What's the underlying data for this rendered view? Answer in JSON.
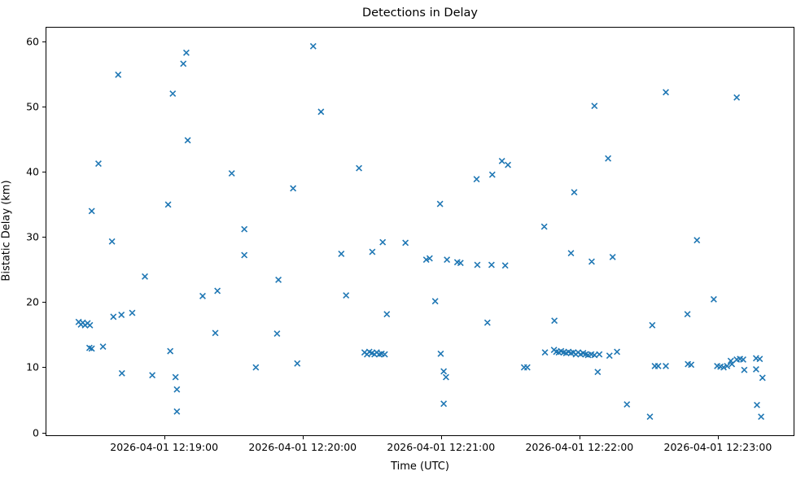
{
  "chart_data": {
    "type": "scatter",
    "title": "Detections in Delay",
    "xlabel": "Time (UTC)",
    "ylabel": "Bistatic Delay (km)",
    "legend": "none",
    "grid": false,
    "marker": "x",
    "marker_color": "#1f77b4",
    "x_unit": "seconds since 2026-04-01 12:18:00 UTC",
    "x_axis_range_s": [
      8.6,
      333.2
    ],
    "y_axis_range": [
      -0.56,
      62.26
    ],
    "x_ticks": [
      {
        "s": 60,
        "label": "2026-04-01 12:19:00"
      },
      {
        "s": 120,
        "label": "2026-04-01 12:20:00"
      },
      {
        "s": 180,
        "label": "2026-04-01 12:21:00"
      },
      {
        "s": 240,
        "label": "2026-04-01 12:22:00"
      },
      {
        "s": 300,
        "label": "2026-04-01 12:23:00"
      }
    ],
    "y_ticks": [
      0,
      10,
      20,
      30,
      40,
      50,
      60
    ],
    "points": [
      [
        69.4,
        58.4
      ],
      [
        68.1,
        56.7
      ],
      [
        39.8,
        55.0
      ],
      [
        63.5,
        52.1
      ],
      [
        70.0,
        44.9
      ],
      [
        31.2,
        41.3
      ],
      [
        89.1,
        39.8
      ],
      [
        61.5,
        35.0
      ],
      [
        28.3,
        34.0
      ],
      [
        37.1,
        29.3
      ],
      [
        51.4,
        23.9
      ],
      [
        76.5,
        20.9
      ],
      [
        82.9,
        21.7
      ],
      [
        22.6,
        16.9
      ],
      [
        23.6,
        16.5
      ],
      [
        24.4,
        16.8
      ],
      [
        25.4,
        16.4
      ],
      [
        26.5,
        16.7
      ],
      [
        27.5,
        16.4
      ],
      [
        37.7,
        17.7
      ],
      [
        41.2,
        18.0
      ],
      [
        45.9,
        18.3
      ],
      [
        82.0,
        15.2
      ],
      [
        27.3,
        12.9
      ],
      [
        28.3,
        12.8
      ],
      [
        33.2,
        13.1
      ],
      [
        62.4,
        12.4
      ],
      [
        41.4,
        9.0
      ],
      [
        54.6,
        8.7
      ],
      [
        64.7,
        8.4
      ],
      [
        65.3,
        6.5
      ],
      [
        65.3,
        3.1
      ],
      [
        124.5,
        59.4
      ],
      [
        127.9,
        49.3
      ],
      [
        144.4,
        40.6
      ],
      [
        115.8,
        37.5
      ],
      [
        94.6,
        31.2
      ],
      [
        94.6,
        27.2
      ],
      [
        136.7,
        27.4
      ],
      [
        150.2,
        27.7
      ],
      [
        154.7,
        29.2
      ],
      [
        164.6,
        29.1
      ],
      [
        109.4,
        23.4
      ],
      [
        138.8,
        21.0
      ],
      [
        156.5,
        18.1
      ],
      [
        108.8,
        15.1
      ],
      [
        146.8,
        12.2
      ],
      [
        147.9,
        11.9
      ],
      [
        148.9,
        12.3
      ],
      [
        150.0,
        12.1
      ],
      [
        151.1,
        11.9
      ],
      [
        152.1,
        12.2
      ],
      [
        153.2,
        11.9
      ],
      [
        154.2,
        12.0
      ],
      [
        155.6,
        11.9
      ],
      [
        117.6,
        10.5
      ],
      [
        99.6,
        9.9
      ],
      [
        246.7,
        50.2
      ],
      [
        206.5,
        41.7
      ],
      [
        209.1,
        41.1
      ],
      [
        202.3,
        39.6
      ],
      [
        195.5,
        38.9
      ],
      [
        237.9,
        36.9
      ],
      [
        179.6,
        35.1
      ],
      [
        224.9,
        31.6
      ],
      [
        173.6,
        26.5
      ],
      [
        175.1,
        26.7
      ],
      [
        182.6,
        26.5
      ],
      [
        187.1,
        26.1
      ],
      [
        188.5,
        26.0
      ],
      [
        195.8,
        25.7
      ],
      [
        202.0,
        25.7
      ],
      [
        207.9,
        25.6
      ],
      [
        236.5,
        27.5
      ],
      [
        245.5,
        26.2
      ],
      [
        177.5,
        20.1
      ],
      [
        200.2,
        16.8
      ],
      [
        229.3,
        17.1
      ],
      [
        179.9,
        12.0
      ],
      [
        225.2,
        12.2
      ],
      [
        229.1,
        12.6
      ],
      [
        230.1,
        12.3
      ],
      [
        231.2,
        12.2
      ],
      [
        232.2,
        12.4
      ],
      [
        233.3,
        12.2
      ],
      [
        234.4,
        12.1
      ],
      [
        235.4,
        12.3
      ],
      [
        236.5,
        12.1
      ],
      [
        237.5,
        12.2
      ],
      [
        238.6,
        11.9
      ],
      [
        239.6,
        12.2
      ],
      [
        240.7,
        11.9
      ],
      [
        241.8,
        12.1
      ],
      [
        242.8,
        11.9
      ],
      [
        243.9,
        11.8
      ],
      [
        245.3,
        11.9
      ],
      [
        246.7,
        11.8
      ],
      [
        248.8,
        11.9
      ],
      [
        253.2,
        11.7
      ],
      [
        256.5,
        12.3
      ],
      [
        216.1,
        9.9
      ],
      [
        217.5,
        9.9
      ],
      [
        248.1,
        9.2
      ],
      [
        181.2,
        9.3
      ],
      [
        182.2,
        8.4
      ],
      [
        181.2,
        4.3
      ],
      [
        277.7,
        52.3
      ],
      [
        308.5,
        51.5
      ],
      [
        252.6,
        42.1
      ],
      [
        291.2,
        29.5
      ],
      [
        254.6,
        26.9
      ],
      [
        298.5,
        20.4
      ],
      [
        287.1,
        18.1
      ],
      [
        271.8,
        16.4
      ],
      [
        272.9,
        10.1
      ],
      [
        274.4,
        10.1
      ],
      [
        277.7,
        10.1
      ],
      [
        287.3,
        10.4
      ],
      [
        288.7,
        10.3
      ],
      [
        300.0,
        10.1
      ],
      [
        301.4,
        10.0
      ],
      [
        302.8,
        9.9
      ],
      [
        304.3,
        10.1
      ],
      [
        305.9,
        10.9
      ],
      [
        306.4,
        10.4
      ],
      [
        308.5,
        11.1
      ],
      [
        309.9,
        11.2
      ],
      [
        311.3,
        11.1
      ],
      [
        311.8,
        9.5
      ],
      [
        316.9,
        11.3
      ],
      [
        318.5,
        11.2
      ],
      [
        316.9,
        9.6
      ],
      [
        319.7,
        8.3
      ],
      [
        260.8,
        4.2
      ],
      [
        270.8,
        2.3
      ],
      [
        317.3,
        4.1
      ],
      [
        319.1,
        2.3
      ]
    ]
  }
}
